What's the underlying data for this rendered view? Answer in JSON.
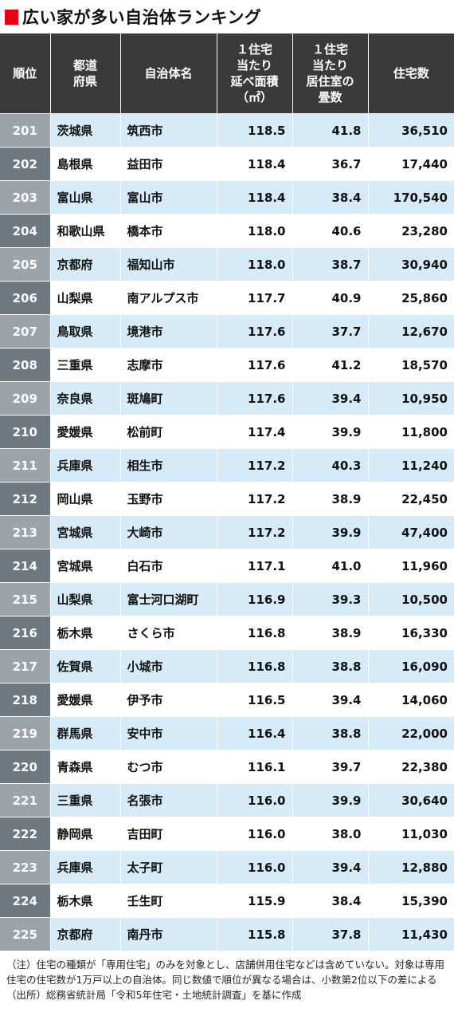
{
  "title": "広い家が多い自治体ランキング",
  "headers": [
    "順位",
    "都道\n府県",
    "自治体名",
    "１住宅\n当たり\n延べ面積\n（㎡）",
    "１住宅\n当たり\n居住室の\n畳数",
    "住宅数"
  ],
  "rows": [
    {
      "rank": "201",
      "pref": "茨城県",
      "city": "筑西市",
      "area": "118.5",
      "tatami": "41.8",
      "houses": "36,510"
    },
    {
      "rank": "202",
      "pref": "島根県",
      "city": "益田市",
      "area": "118.4",
      "tatami": "36.7",
      "houses": "17,440"
    },
    {
      "rank": "203",
      "pref": "富山県",
      "city": "富山市",
      "area": "118.4",
      "tatami": "38.4",
      "houses": "170,540"
    },
    {
      "rank": "204",
      "pref": "和歌山県",
      "city": "橋本市",
      "area": "118.0",
      "tatami": "40.6",
      "houses": "23,280"
    },
    {
      "rank": "205",
      "pref": "京都府",
      "city": "福知山市",
      "area": "118.0",
      "tatami": "38.7",
      "houses": "30,940"
    },
    {
      "rank": "206",
      "pref": "山梨県",
      "city": "南アルプス市",
      "area": "117.7",
      "tatami": "40.9",
      "houses": "25,860"
    },
    {
      "rank": "207",
      "pref": "鳥取県",
      "city": "境港市",
      "area": "117.6",
      "tatami": "37.7",
      "houses": "12,670"
    },
    {
      "rank": "208",
      "pref": "三重県",
      "city": "志摩市",
      "area": "117.6",
      "tatami": "41.2",
      "houses": "18,570"
    },
    {
      "rank": "209",
      "pref": "奈良県",
      "city": "斑鳩町",
      "area": "117.6",
      "tatami": "39.4",
      "houses": "10,950"
    },
    {
      "rank": "210",
      "pref": "愛媛県",
      "city": "松前町",
      "area": "117.4",
      "tatami": "39.9",
      "houses": "11,800"
    },
    {
      "rank": "211",
      "pref": "兵庫県",
      "city": "相生市",
      "area": "117.2",
      "tatami": "40.3",
      "houses": "11,240"
    },
    {
      "rank": "212",
      "pref": "岡山県",
      "city": "玉野市",
      "area": "117.2",
      "tatami": "38.9",
      "houses": "22,450"
    },
    {
      "rank": "213",
      "pref": "宮城県",
      "city": "大崎市",
      "area": "117.2",
      "tatami": "39.9",
      "houses": "47,400"
    },
    {
      "rank": "214",
      "pref": "宮城県",
      "city": "白石市",
      "area": "117.1",
      "tatami": "41.0",
      "houses": "11,960"
    },
    {
      "rank": "215",
      "pref": "山梨県",
      "city": "富士河口湖町",
      "area": "116.9",
      "tatami": "39.3",
      "houses": "10,500"
    },
    {
      "rank": "216",
      "pref": "栃木県",
      "city": "さくら市",
      "area": "116.8",
      "tatami": "38.9",
      "houses": "16,330"
    },
    {
      "rank": "217",
      "pref": "佐賀県",
      "city": "小城市",
      "area": "116.8",
      "tatami": "38.8",
      "houses": "16,090"
    },
    {
      "rank": "218",
      "pref": "愛媛県",
      "city": "伊予市",
      "area": "116.5",
      "tatami": "39.4",
      "houses": "14,060"
    },
    {
      "rank": "219",
      "pref": "群馬県",
      "city": "安中市",
      "area": "116.4",
      "tatami": "38.8",
      "houses": "22,000"
    },
    {
      "rank": "220",
      "pref": "青森県",
      "city": "むつ市",
      "area": "116.1",
      "tatami": "39.7",
      "houses": "22,380"
    },
    {
      "rank": "221",
      "pref": "三重県",
      "city": "名張市",
      "area": "116.0",
      "tatami": "39.9",
      "houses": "30,640"
    },
    {
      "rank": "222",
      "pref": "静岡県",
      "city": "吉田町",
      "area": "116.0",
      "tatami": "38.0",
      "houses": "11,030"
    },
    {
      "rank": "223",
      "pref": "兵庫県",
      "city": "太子町",
      "area": "116.0",
      "tatami": "39.4",
      "houses": "12,880"
    },
    {
      "rank": "224",
      "pref": "栃木県",
      "city": "壬生町",
      "area": "115.9",
      "tatami": "38.4",
      "houses": "15,390"
    },
    {
      "rank": "225",
      "pref": "京都府",
      "city": "南丹市",
      "area": "115.8",
      "tatami": "37.8",
      "houses": "11,430"
    }
  ],
  "notes": [
    "（注）住宅の種類が「専用住宅」のみを対象とし、店舗併用住宅などは含めていない。対象は専用住宅の住宅数が1万戸以上の自治体。同じ数値で順位が異なる場合は、小数第2位以下の差による",
    "（出所）総務省統計局「令和5年住宅・土地統計調査」を基に作成"
  ],
  "colors": {
    "title_mark": "#e60012",
    "header_bg": "#3a3a3a",
    "row_stripe": "#d6ebf7",
    "rank_light": "#9ca3a9",
    "rank_dark": "#6f787f"
  }
}
